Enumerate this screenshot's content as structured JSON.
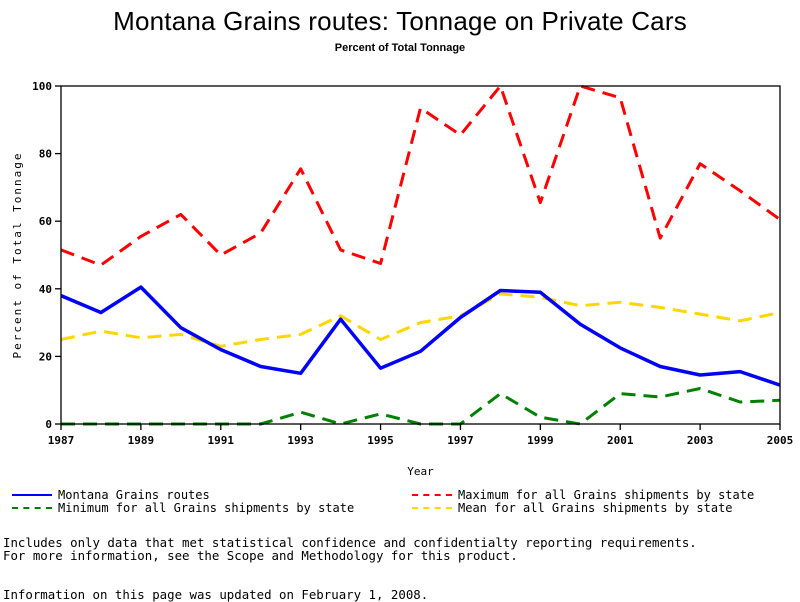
{
  "title": "Montana Grains routes: Tonnage on Private Cars",
  "subtitle": "Percent of Total Tonnage",
  "notes": {
    "line1": "Includes only data that met statistical confidence and confidentialty reporting requirements.",
    "line2": "For more information, see the Scope and Methodology for this product.",
    "updated": "Information on this page was updated on February 1, 2008."
  },
  "chart_data": {
    "type": "line",
    "title": "Montana Grains routes: Tonnage on Private Cars",
    "subtitle": "Percent of Total Tonnage",
    "xlabel": "Year",
    "ylabel": "Percent of Total Tonnage",
    "xlim": [
      1987,
      2005
    ],
    "ylim": [
      0,
      100
    ],
    "x_ticks": [
      1987,
      1989,
      1991,
      1993,
      1995,
      1997,
      1999,
      2001,
      2003,
      2005
    ],
    "y_ticks": [
      0,
      20,
      40,
      60,
      80,
      100
    ],
    "grid": false,
    "legend_position": "bottom",
    "x": [
      1987,
      1988,
      1989,
      1990,
      1991,
      1992,
      1993,
      1994,
      1995,
      1996,
      1997,
      1998,
      1999,
      2000,
      2001,
      2002,
      2003,
      2004,
      2005
    ],
    "series": [
      {
        "name": "Montana Grains routes",
        "color": "#0000ff",
        "style": "solid",
        "values": [
          38,
          33,
          40.5,
          28.5,
          22,
          17,
          15,
          31,
          16.5,
          21.5,
          31.5,
          39.5,
          39,
          29.5,
          22.5,
          17,
          14.5,
          15.5,
          11.5
        ]
      },
      {
        "name": "Maximum for all Grains shipments by state",
        "color": "#ff0000",
        "style": "dashed",
        "values": [
          51.5,
          47,
          55.5,
          62,
          50,
          56.5,
          75.5,
          51.5,
          47.5,
          93.5,
          85.5,
          100,
          65.5,
          100,
          96.5,
          55,
          77,
          69,
          60.5
        ]
      },
      {
        "name": "Minimum for all Grains shipments by state",
        "color": "#008000",
        "style": "dashed",
        "values": [
          0,
          0,
          0,
          0,
          0,
          0,
          3.5,
          0,
          3,
          0,
          0,
          9,
          2,
          0,
          9,
          8,
          10.5,
          6.5,
          7
        ]
      },
      {
        "name": "Mean for all Grains shipments by state",
        "color": "#ffd700",
        "style": "dashed",
        "values": [
          25,
          27.5,
          25.5,
          26.5,
          23,
          25,
          26.5,
          32,
          25,
          30,
          32,
          38.5,
          37.5,
          35,
          36,
          34.5,
          32.5,
          30.5,
          33
        ]
      }
    ]
  }
}
